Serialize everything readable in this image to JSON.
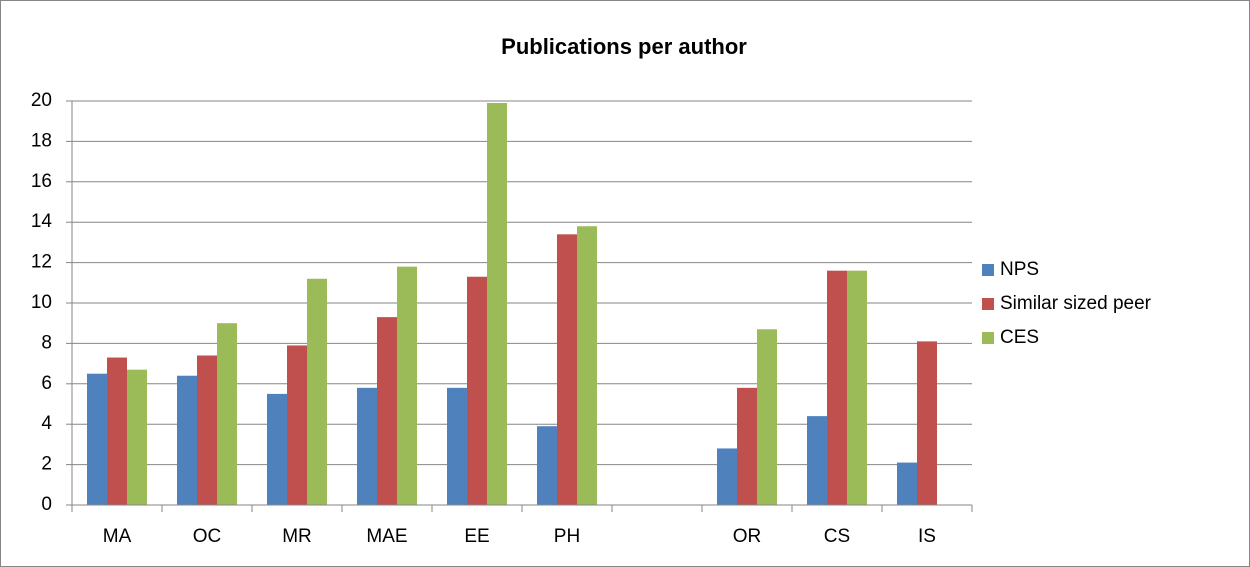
{
  "chart_data": {
    "type": "bar",
    "title": "Publications per author",
    "categories": [
      "MA",
      "OC",
      "MR",
      "MAE",
      "EE",
      "PH",
      null,
      "OR",
      "CS",
      "IS"
    ],
    "series": [
      {
        "name": "NPS",
        "color": "#4f81bd",
        "values": [
          6.5,
          6.4,
          5.5,
          5.8,
          5.8,
          3.9,
          null,
          2.8,
          4.4,
          2.1
        ]
      },
      {
        "name": "Similar sized peer",
        "color": "#c0504d",
        "values": [
          7.3,
          7.4,
          7.9,
          9.3,
          11.3,
          13.4,
          null,
          5.8,
          11.6,
          8.1
        ]
      },
      {
        "name": "CES",
        "color": "#9bbb59",
        "values": [
          6.7,
          9.0,
          11.2,
          11.8,
          19.9,
          13.8,
          null,
          8.7,
          11.6,
          null
        ]
      }
    ],
    "ylim": [
      0,
      20
    ],
    "yticks": [
      0,
      2,
      4,
      6,
      8,
      10,
      12,
      14,
      16,
      18,
      20
    ],
    "grid": true,
    "legend": "right"
  }
}
